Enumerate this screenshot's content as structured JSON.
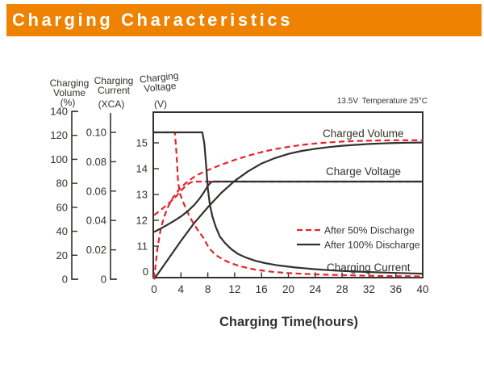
{
  "header": {
    "title": "Charging Characteristics",
    "bg_color": "#EF8200",
    "text_color": "#FFFFFF"
  },
  "annotation": {
    "voltage_setting": "13.5V",
    "temperature": "Temperature 25°C"
  },
  "chart_data": {
    "type": "line",
    "xlabel": "Charging Time(hours)",
    "xlim": [
      0,
      40
    ],
    "x_ticks": [
      0,
      4,
      8,
      12,
      16,
      20,
      24,
      28,
      32,
      36,
      40
    ],
    "axes": {
      "volume": {
        "label_line1": "Charging",
        "label_line2": "Volume",
        "unit": "(%)",
        "ticks": [
          0,
          20,
          40,
          60,
          80,
          100,
          120,
          140
        ],
        "lim": [
          0,
          140
        ]
      },
      "current": {
        "label_line1": "Charging",
        "label_line2": "Current",
        "unit": "(XCA)",
        "ticks": [
          "0",
          "0.02",
          "0.04",
          "0.06",
          "0.08",
          "0.10"
        ],
        "lim": [
          0,
          0.1
        ]
      },
      "voltage": {
        "label_line1": "Charging",
        "label_line2": "Voltage",
        "unit": "(V)",
        "ticks": [
          11,
          12,
          13,
          14,
          15
        ],
        "zero_label": "0",
        "lim": [
          11,
          15
        ]
      }
    },
    "curve_labels": {
      "volume": "Charged Volume",
      "voltage": "Charge Voltage",
      "current": "Charging Current"
    },
    "legend": [
      {
        "label": "After 50% Discharge",
        "style": "dashed",
        "color": "#e5232b"
      },
      {
        "label": "After 100% Discharge",
        "style": "solid",
        "color": "#33312e"
      }
    ],
    "series": [
      {
        "id": "volume-100",
        "axis": "volume",
        "style": "solid",
        "points": [
          [
            0,
            0
          ],
          [
            2,
            16
          ],
          [
            4,
            32
          ],
          [
            6,
            47
          ],
          [
            8,
            60
          ],
          [
            10,
            72
          ],
          [
            12,
            82
          ],
          [
            14,
            90
          ],
          [
            16,
            96.5
          ],
          [
            18,
            101
          ],
          [
            20,
            104.5
          ],
          [
            22,
            107
          ],
          [
            24,
            108.8
          ],
          [
            26,
            110.2
          ],
          [
            28,
            111.3
          ],
          [
            30,
            112.1
          ],
          [
            32,
            112.8
          ],
          [
            34,
            113.3
          ],
          [
            36,
            113.7
          ],
          [
            38,
            113.9
          ],
          [
            40,
            114
          ]
        ]
      },
      {
        "id": "volume-50",
        "axis": "volume",
        "style": "dashed",
        "points": [
          [
            0,
            0
          ],
          [
            0.5,
            26
          ],
          [
            1,
            42
          ],
          [
            1.5,
            52
          ],
          [
            2,
            59.5
          ],
          [
            2.5,
            65
          ],
          [
            3,
            69.5
          ],
          [
            4,
            76.5
          ],
          [
            5,
            81.5
          ],
          [
            6,
            85.5
          ],
          [
            7,
            88.5
          ],
          [
            8,
            91
          ],
          [
            10,
            95.5
          ],
          [
            12,
            99.5
          ],
          [
            14,
            103
          ],
          [
            16,
            106
          ],
          [
            18,
            108.5
          ],
          [
            20,
            110.4
          ],
          [
            22,
            112
          ],
          [
            24,
            113.2
          ],
          [
            26,
            114.1
          ],
          [
            28,
            114.8
          ],
          [
            30,
            115.3
          ],
          [
            33,
            115.7
          ],
          [
            36,
            115.9
          ],
          [
            40,
            116
          ]
        ]
      },
      {
        "id": "voltage-50",
        "axis": "voltage",
        "style": "dashed",
        "points": [
          [
            0,
            12.2
          ],
          [
            1,
            12.4
          ],
          [
            2,
            12.62
          ],
          [
            3,
            12.85
          ],
          [
            3.8,
            13.08
          ],
          [
            4.5,
            13.28
          ],
          [
            5.2,
            13.43
          ],
          [
            5.8,
            13.5
          ],
          [
            40,
            13.5
          ]
        ]
      },
      {
        "id": "voltage-100",
        "axis": "voltage",
        "style": "solid",
        "points": [
          [
            0,
            11.55
          ],
          [
            1,
            11.68
          ],
          [
            2,
            11.83
          ],
          [
            3,
            11.98
          ],
          [
            4,
            12.15
          ],
          [
            5,
            12.35
          ],
          [
            6,
            12.6
          ],
          [
            6.8,
            12.85
          ],
          [
            7.5,
            13.12
          ],
          [
            8.1,
            13.37
          ],
          [
            8.5,
            13.48
          ],
          [
            8.8,
            13.5
          ],
          [
            40,
            13.5
          ]
        ]
      },
      {
        "id": "current-50",
        "axis": "current",
        "style": "dashed",
        "points": [
          [
            0,
            0.1
          ],
          [
            3.1,
            0.1
          ],
          [
            3.35,
            0.085
          ],
          [
            3.55,
            0.068
          ],
          [
            3.8,
            0.059
          ],
          [
            4.2,
            0.054
          ],
          [
            4.7,
            0.0485
          ],
          [
            5.2,
            0.0435
          ],
          [
            5.8,
            0.0385
          ],
          [
            6.5,
            0.0335
          ],
          [
            7.3,
            0.0285
          ],
          [
            8.2,
            0.021
          ],
          [
            9.2,
            0.0165
          ],
          [
            10.3,
            0.0133
          ],
          [
            11.5,
            0.0108
          ],
          [
            13,
            0.0086
          ],
          [
            15,
            0.0066
          ],
          [
            17.5,
            0.0051
          ],
          [
            20,
            0.0042
          ],
          [
            23,
            0.0035
          ],
          [
            26,
            0.003
          ],
          [
            30,
            0.0026
          ],
          [
            34,
            0.0022
          ],
          [
            40,
            0.0019
          ]
        ]
      },
      {
        "id": "current-100",
        "axis": "current",
        "style": "solid",
        "points": [
          [
            0,
            0.1
          ],
          [
            7.2,
            0.1
          ],
          [
            7.5,
            0.092
          ],
          [
            7.8,
            0.075
          ],
          [
            8,
            0.062
          ],
          [
            8.3,
            0.051
          ],
          [
            8.7,
            0.0425
          ],
          [
            9.2,
            0.0355
          ],
          [
            9.8,
            0.029
          ],
          [
            10.6,
            0.0245
          ],
          [
            11.5,
            0.0205
          ],
          [
            12.5,
            0.0172
          ],
          [
            13.7,
            0.0147
          ],
          [
            15,
            0.0127
          ],
          [
            16.5,
            0.011
          ],
          [
            18.5,
            0.0094
          ],
          [
            21,
            0.008
          ],
          [
            24,
            0.0068
          ],
          [
            27,
            0.0059
          ],
          [
            30,
            0.0052
          ],
          [
            33,
            0.0047
          ],
          [
            36,
            0.0043
          ],
          [
            40,
            0.0038
          ]
        ]
      }
    ]
  }
}
